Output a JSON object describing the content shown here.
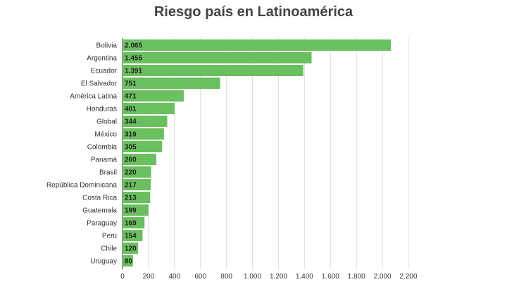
{
  "chart_data": {
    "type": "bar",
    "orientation": "horizontal",
    "title": "Riesgo país en Latinoamérica",
    "xlabel": "",
    "ylabel": "",
    "xlim": [
      0,
      2200
    ],
    "grid": true,
    "bar_color": "#6abf5e",
    "categories": [
      "Bolivia",
      "Argentina",
      "Ecuador",
      "El Salvador",
      "América Latina",
      "Honduras",
      "Global",
      "México",
      "Colombia",
      "Panamá",
      "Brasil",
      "República Dominicana",
      "Costa Rica",
      "Guatemala",
      "Paraguay",
      "Perú",
      "Chile",
      "Uruguay"
    ],
    "values": [
      2065,
      1455,
      1391,
      751,
      471,
      401,
      344,
      319,
      305,
      260,
      220,
      217,
      213,
      199,
      169,
      154,
      120,
      80
    ],
    "value_labels": [
      "2.065",
      "1.455",
      "1.391",
      "751",
      "471",
      "401",
      "344",
      "319",
      "305",
      "260",
      "220",
      "217",
      "213",
      "199",
      "169",
      "154",
      "120",
      "80"
    ],
    "ticks": [
      0,
      200,
      400,
      600,
      800,
      1000,
      1200,
      1400,
      1600,
      1800,
      2000,
      2200
    ],
    "tick_labels": [
      "0",
      "200",
      "400",
      "600",
      "800",
      "1.000",
      "1.200",
      "1.400",
      "1.600",
      "1.800",
      "2.000",
      "2.200"
    ]
  }
}
